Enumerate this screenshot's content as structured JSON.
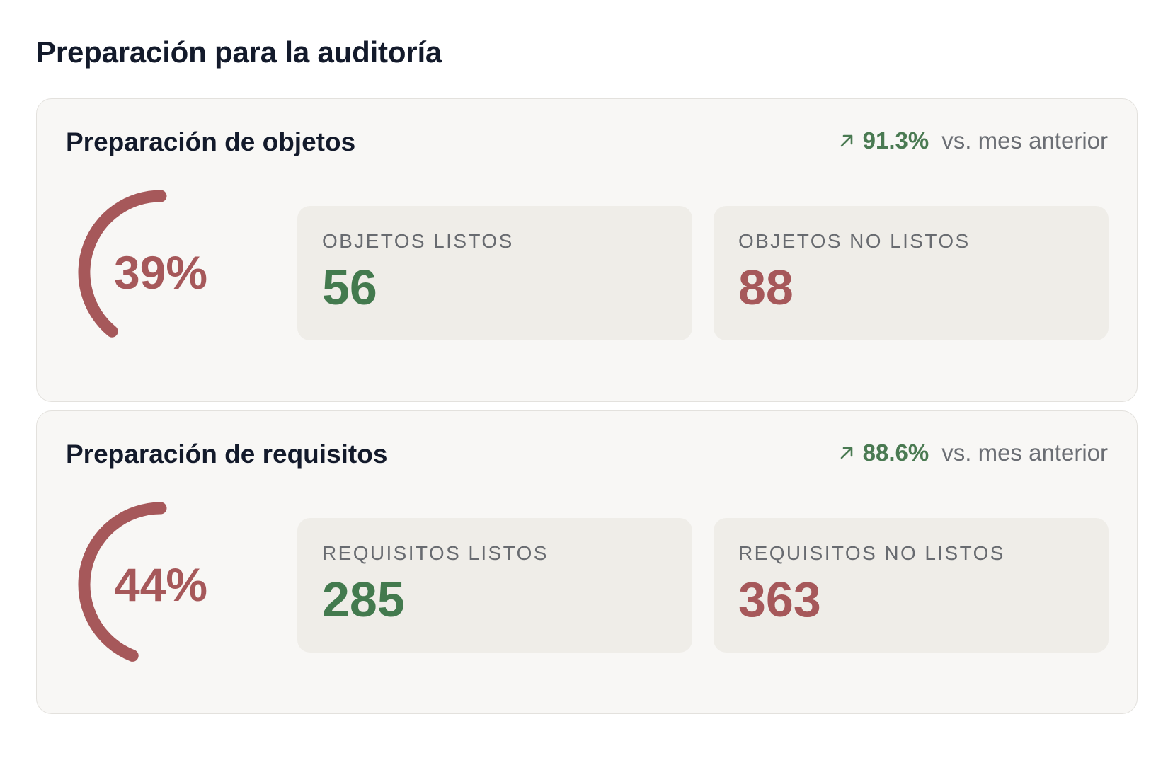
{
  "page": {
    "title": "Preparación para la auditoría"
  },
  "cards": [
    {
      "title": "Preparación de objetos",
      "trend": {
        "icon": "arrow-up-right-icon",
        "value": "91.3%",
        "label": "vs. mes anterior"
      },
      "gauge": {
        "value_label": "39%",
        "fraction": 0.39
      },
      "ready": {
        "label": "OBJETOS LISTOS",
        "value": "56"
      },
      "not_ready": {
        "label": "OBJETOS NO LISTOS",
        "value": "88"
      }
    },
    {
      "title": "Preparación de requisitos",
      "trend": {
        "icon": "arrow-up-right-icon",
        "value": "88.6%",
        "label": "vs. mes anterior"
      },
      "gauge": {
        "value_label": "44%",
        "fraction": 0.44
      },
      "ready": {
        "label": "REQUISITOS LISTOS",
        "value": "285"
      },
      "not_ready": {
        "label": "REQUISITOS NO LISTOS",
        "value": "363"
      }
    }
  ],
  "colors": {
    "accent_good": "#437a4e",
    "accent_bad": "#a6585a"
  }
}
